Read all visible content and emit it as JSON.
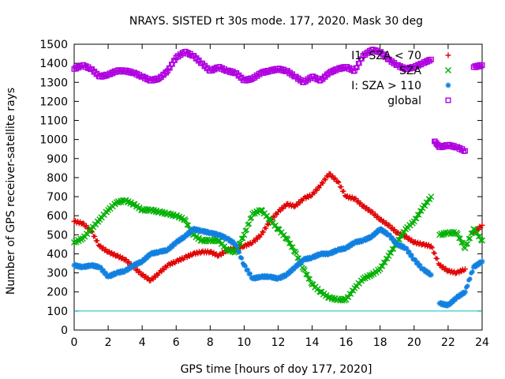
{
  "chart_data": {
    "type": "scatter",
    "title": "NRAYS. SISTED rt 30s mode. 177, 2020. Mask 30 deg",
    "xlabel": "GPS time [hours of doy 177, 2020]",
    "ylabel": "Number of GPS receiver-satellite rays",
    "xlim": [
      0,
      24
    ],
    "ylim": [
      0,
      1500
    ],
    "xticks": [
      0,
      2,
      4,
      6,
      8,
      10,
      12,
      14,
      16,
      18,
      20,
      22,
      24
    ],
    "yticks": [
      0,
      100,
      200,
      300,
      400,
      500,
      600,
      700,
      800,
      900,
      1000,
      1100,
      1200,
      1300,
      1400,
      1500
    ],
    "reference_line": {
      "y": 100,
      "color": "#00c0c0"
    },
    "legend_position": "top-right",
    "series": [
      {
        "name": "I1: SZA < 70",
        "marker": "plus",
        "color": "#e00000",
        "points": [
          [
            0,
            570
          ],
          [
            0.5,
            560
          ],
          [
            1,
            520
          ],
          [
            1.5,
            440
          ],
          [
            2,
            410
          ],
          [
            2.5,
            390
          ],
          [
            3,
            370
          ],
          [
            3.5,
            330
          ],
          [
            4,
            290
          ],
          [
            4.5,
            260
          ],
          [
            5,
            300
          ],
          [
            5.5,
            340
          ],
          [
            6,
            360
          ],
          [
            6.5,
            380
          ],
          [
            7,
            400
          ],
          [
            7.5,
            410
          ],
          [
            8,
            410
          ],
          [
            8.5,
            390
          ],
          [
            9,
            420
          ],
          [
            9.5,
            430
          ],
          [
            10,
            440
          ],
          [
            10.5,
            460
          ],
          [
            11,
            500
          ],
          [
            11.5,
            570
          ],
          [
            12,
            620
          ],
          [
            12.5,
            660
          ],
          [
            13,
            650
          ],
          [
            13.5,
            690
          ],
          [
            14,
            710
          ],
          [
            14.5,
            760
          ],
          [
            15,
            820
          ],
          [
            15.5,
            780
          ],
          [
            16,
            700
          ],
          [
            16.5,
            690
          ],
          [
            17,
            650
          ],
          [
            17.5,
            620
          ],
          [
            18,
            580
          ],
          [
            18.5,
            550
          ],
          [
            19,
            510
          ],
          [
            19.5,
            490
          ],
          [
            20,
            460
          ],
          [
            20.5,
            450
          ],
          [
            21,
            440
          ],
          [
            21.5,
            340
          ],
          [
            22,
            310
          ],
          [
            22.5,
            300
          ],
          [
            23,
            320
          ],
          [
            23.5,
            510
          ],
          [
            24,
            550
          ]
        ]
      },
      {
        "name": "SZA",
        "marker": "cross",
        "color": "#00b000",
        "points": [
          [
            0,
            460
          ],
          [
            0.5,
            480
          ],
          [
            1,
            530
          ],
          [
            1.5,
            580
          ],
          [
            2,
            630
          ],
          [
            2.5,
            670
          ],
          [
            3,
            680
          ],
          [
            3.5,
            660
          ],
          [
            4,
            630
          ],
          [
            4.5,
            630
          ],
          [
            5,
            620
          ],
          [
            5.5,
            610
          ],
          [
            6,
            600
          ],
          [
            6.5,
            580
          ],
          [
            7,
            500
          ],
          [
            7.5,
            470
          ],
          [
            8,
            470
          ],
          [
            8.5,
            470
          ],
          [
            9,
            420
          ],
          [
            9.5,
            410
          ],
          [
            10,
            500
          ],
          [
            10.5,
            610
          ],
          [
            11,
            630
          ],
          [
            11.5,
            580
          ],
          [
            12,
            530
          ],
          [
            12.5,
            480
          ],
          [
            13,
            410
          ],
          [
            13.5,
            320
          ],
          [
            14,
            240
          ],
          [
            14.5,
            200
          ],
          [
            15,
            170
          ],
          [
            15.5,
            160
          ],
          [
            16,
            160
          ],
          [
            16.5,
            220
          ],
          [
            17,
            270
          ],
          [
            17.5,
            290
          ],
          [
            18,
            320
          ],
          [
            18.5,
            390
          ],
          [
            19,
            460
          ],
          [
            19.5,
            530
          ],
          [
            20,
            570
          ],
          [
            20.5,
            640
          ],
          [
            21,
            700
          ],
          [
            21.5,
            500
          ],
          [
            22,
            510
          ],
          [
            22.5,
            510
          ],
          [
            23,
            430
          ],
          [
            23.5,
            530
          ],
          [
            24,
            470
          ]
        ]
      },
      {
        "name": "I: SZA > 110",
        "marker": "star",
        "color": "#1080e0",
        "points": [
          [
            0,
            340
          ],
          [
            0.5,
            330
          ],
          [
            1,
            340
          ],
          [
            1.5,
            330
          ],
          [
            2,
            280
          ],
          [
            2.5,
            300
          ],
          [
            3,
            310
          ],
          [
            3.5,
            340
          ],
          [
            4,
            360
          ],
          [
            4.5,
            400
          ],
          [
            5,
            410
          ],
          [
            5.5,
            420
          ],
          [
            6,
            460
          ],
          [
            6.5,
            490
          ],
          [
            7,
            530
          ],
          [
            7.5,
            520
          ],
          [
            8,
            510
          ],
          [
            8.5,
            500
          ],
          [
            9,
            480
          ],
          [
            9.5,
            450
          ],
          [
            10,
            340
          ],
          [
            10.5,
            270
          ],
          [
            11,
            280
          ],
          [
            11.5,
            280
          ],
          [
            12,
            270
          ],
          [
            12.5,
            290
          ],
          [
            13,
            330
          ],
          [
            13.5,
            370
          ],
          [
            14,
            380
          ],
          [
            14.5,
            400
          ],
          [
            15,
            400
          ],
          [
            15.5,
            420
          ],
          [
            16,
            430
          ],
          [
            16.5,
            460
          ],
          [
            17,
            470
          ],
          [
            17.5,
            490
          ],
          [
            18,
            530
          ],
          [
            18.5,
            500
          ],
          [
            19,
            450
          ],
          [
            19.5,
            430
          ],
          [
            20,
            370
          ],
          [
            20.5,
            320
          ],
          [
            21,
            290
          ],
          [
            21.5,
            140
          ],
          [
            22,
            130
          ],
          [
            22.5,
            170
          ],
          [
            23,
            200
          ],
          [
            23.5,
            330
          ],
          [
            24,
            360
          ]
        ]
      },
      {
        "name": "global",
        "marker": "square",
        "color": "#b000e0",
        "points": [
          [
            0,
            1370
          ],
          [
            0.5,
            1390
          ],
          [
            1,
            1370
          ],
          [
            1.5,
            1330
          ],
          [
            2,
            1340
          ],
          [
            2.5,
            1360
          ],
          [
            3,
            1360
          ],
          [
            3.5,
            1350
          ],
          [
            4,
            1330
          ],
          [
            4.5,
            1310
          ],
          [
            5,
            1320
          ],
          [
            5.5,
            1360
          ],
          [
            6,
            1430
          ],
          [
            6.5,
            1460
          ],
          [
            7,
            1440
          ],
          [
            7.5,
            1400
          ],
          [
            8,
            1360
          ],
          [
            8.5,
            1380
          ],
          [
            9,
            1360
          ],
          [
            9.5,
            1350
          ],
          [
            10,
            1310
          ],
          [
            10.5,
            1320
          ],
          [
            11,
            1350
          ],
          [
            11.5,
            1360
          ],
          [
            12,
            1370
          ],
          [
            12.5,
            1360
          ],
          [
            13,
            1330
          ],
          [
            13.5,
            1300
          ],
          [
            14,
            1330
          ],
          [
            14.5,
            1310
          ],
          [
            15,
            1350
          ],
          [
            15.5,
            1370
          ],
          [
            16,
            1380
          ],
          [
            16.5,
            1360
          ],
          [
            17,
            1440
          ],
          [
            17.5,
            1470
          ],
          [
            18,
            1460
          ],
          [
            18.5,
            1420
          ],
          [
            19,
            1390
          ],
          [
            19.5,
            1370
          ],
          [
            20,
            1380
          ],
          [
            20.5,
            1400
          ],
          [
            21,
            1420
          ],
          [
            21.2,
            990
          ],
          [
            21.5,
            960
          ],
          [
            22,
            970
          ],
          [
            22.5,
            960
          ],
          [
            23,
            940
          ],
          [
            23.5,
            1380
          ],
          [
            24,
            1390
          ]
        ]
      }
    ]
  }
}
